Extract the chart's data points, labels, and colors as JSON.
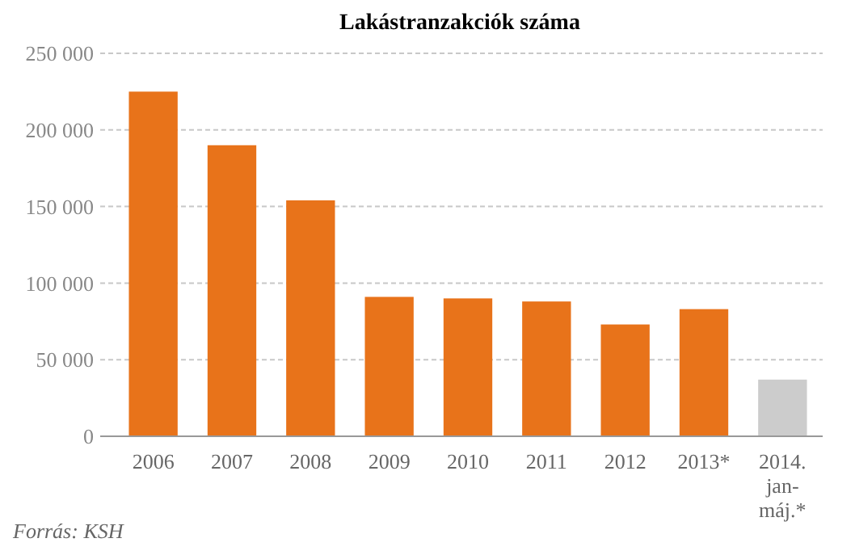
{
  "chart_data": {
    "type": "bar",
    "title": "Lakástranzakciók száma",
    "categories": [
      "2006",
      "2007",
      "2008",
      "2009",
      "2010",
      "2011",
      "2012",
      "2013*",
      "2014. jan-máj.*"
    ],
    "values": [
      225000,
      190000,
      154000,
      91000,
      90000,
      88000,
      73000,
      83000,
      37000
    ],
    "colors": [
      "#e8731a",
      "#e8731a",
      "#e8731a",
      "#e8731a",
      "#e8731a",
      "#e8731a",
      "#e8731a",
      "#e8731a",
      "#cccccc"
    ],
    "ylim": [
      0,
      250000
    ],
    "yticks": [
      {
        "value": 0,
        "label": "0"
      },
      {
        "value": 50000,
        "label": "50 000"
      },
      {
        "value": 100000,
        "label": "100 000"
      },
      {
        "value": 150000,
        "label": "150 000"
      },
      {
        "value": 200000,
        "label": "200 000"
      },
      {
        "value": 250000,
        "label": "250 000"
      }
    ],
    "grid": "y",
    "annotations": [
      "Forrás: KSH"
    ]
  }
}
